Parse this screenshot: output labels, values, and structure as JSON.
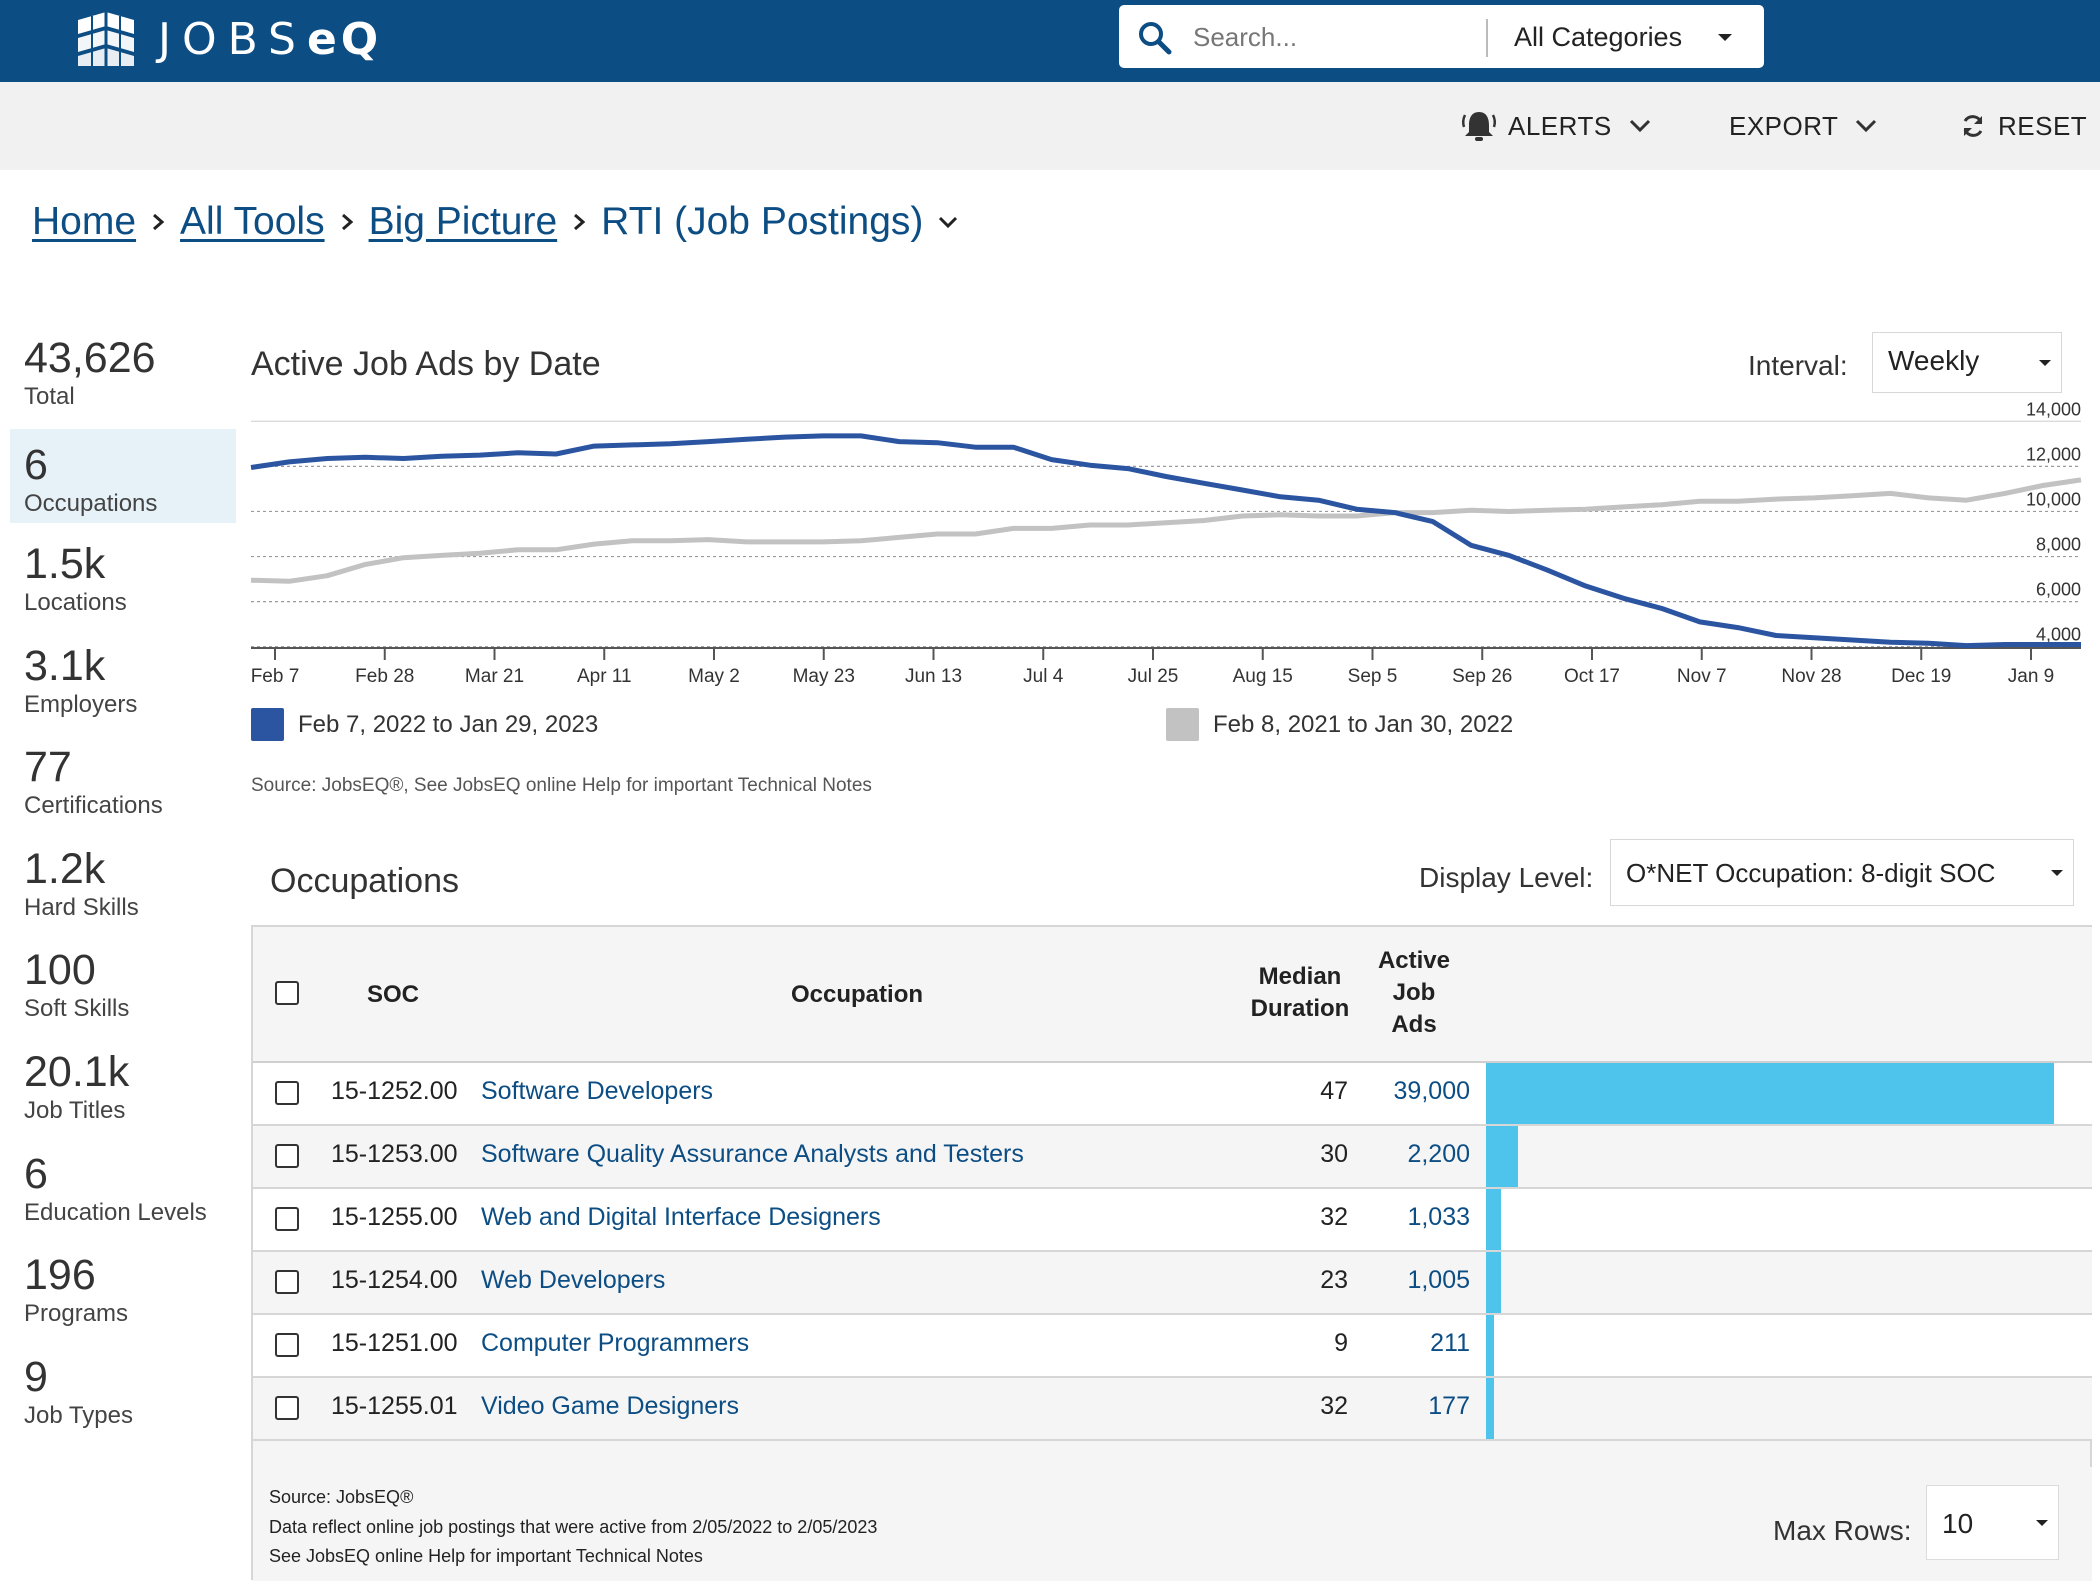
{
  "header": {
    "logo_text_light": "JOBS",
    "logo_text_bold": "eQ",
    "search": {
      "placeholder": "Search...",
      "category": "All Categories"
    }
  },
  "actions": {
    "alerts": "ALERTS",
    "export": "EXPORT",
    "reset": "RESET"
  },
  "breadcrumb": {
    "items": [
      "Home",
      "All Tools",
      "Big Picture"
    ],
    "current": "RTI (Job Postings)"
  },
  "stats": [
    {
      "value": "43,626",
      "label": "Total"
    },
    {
      "value": "6",
      "label": "Occupations"
    },
    {
      "value": "1.5k",
      "label": "Locations"
    },
    {
      "value": "3.1k",
      "label": "Employers"
    },
    {
      "value": "77",
      "label": "Certifications"
    },
    {
      "value": "1.2k",
      "label": "Hard Skills"
    },
    {
      "value": "100",
      "label": "Soft Skills"
    },
    {
      "value": "20.1k",
      "label": "Job Titles"
    },
    {
      "value": "6",
      "label": "Education Levels"
    },
    {
      "value": "196",
      "label": "Programs"
    },
    {
      "value": "9",
      "label": "Job Types"
    }
  ],
  "active_stat": "Occupations",
  "chart_panel": {
    "interval_label": "Interval:",
    "interval_value": "Weekly",
    "source": "Source: JobsEQ®, See JobsEQ online Help for important Technical Notes"
  },
  "chart_data": {
    "type": "line",
    "title": "Active Job Ads by Date",
    "x_ticks": [
      "Feb 7",
      "Feb 28",
      "Mar 21",
      "Apr 11",
      "May 2",
      "May 23",
      "Jun 13",
      "Jul 4",
      "Jul 25",
      "Aug 15",
      "Sep 5",
      "Sep 26",
      "Oct 17",
      "Nov 7",
      "Nov 28",
      "Dec 19",
      "Jan 9"
    ],
    "y_ticks": [
      4000,
      6000,
      8000,
      10000,
      12000,
      14000
    ],
    "y_tick_labels": [
      "4,000",
      "6,000",
      "8,000",
      "10,000",
      "12,000",
      "14,000"
    ],
    "ylim": [
      3500,
      14500
    ],
    "grid": "horizontal dashed",
    "legend_placement": "bottom",
    "series": [
      {
        "name": "Feb 7, 2022 to Jan 29, 2023",
        "color": "#2b55a1",
        "values": [
          11950,
          12200,
          12350,
          12400,
          12350,
          12450,
          12500,
          12600,
          12550,
          12900,
          12950,
          13000,
          13100,
          13200,
          13300,
          13350,
          13350,
          13100,
          13050,
          12850,
          12850,
          12300,
          12050,
          11900,
          11550,
          11250,
          10950,
          10650,
          10500,
          10100,
          9950,
          9550,
          8500,
          8050,
          7400,
          6700,
          6150,
          5700,
          5100,
          4850,
          4500,
          4400,
          4300,
          4200,
          4150,
          4050,
          4100,
          4100,
          4100
        ]
      },
      {
        "name": "Feb 8, 2021 to Jan 30, 2022",
        "color": "#c2c2c2",
        "values": [
          6950,
          6900,
          7150,
          7650,
          7950,
          8050,
          8150,
          8300,
          8300,
          8550,
          8700,
          8700,
          8750,
          8650,
          8650,
          8650,
          8700,
          8850,
          9000,
          9000,
          9250,
          9250,
          9400,
          9400,
          9500,
          9600,
          9800,
          9850,
          9800,
          9800,
          9950,
          9950,
          10050,
          10000,
          10050,
          10100,
          10200,
          10300,
          10450,
          10450,
          10550,
          10600,
          10700,
          10800,
          10600,
          10500,
          10800,
          11150,
          11400
        ]
      }
    ]
  },
  "occupations": {
    "title": "Occupations",
    "display_label": "Display Level:",
    "display_value": "O*NET Occupation: 8-digit SOC",
    "columns": {
      "soc": "SOC",
      "occupation": "Occupation",
      "duration": [
        "Median",
        "Duration"
      ],
      "ads": [
        "Active",
        "Job",
        "Ads"
      ]
    },
    "rows": [
      {
        "soc": "15-1252.00",
        "occupation": "Software Developers",
        "duration": "47",
        "ads": "39,000",
        "ads_value": 39000
      },
      {
        "soc": "15-1253.00",
        "occupation": "Software Quality Assurance Analysts and Testers",
        "duration": "30",
        "ads": "2,200",
        "ads_value": 2200
      },
      {
        "soc": "15-1255.00",
        "occupation": "Web and Digital Interface Designers",
        "duration": "32",
        "ads": "1,033",
        "ads_value": 1033
      },
      {
        "soc": "15-1254.00",
        "occupation": "Web Developers",
        "duration": "23",
        "ads": "1,005",
        "ads_value": 1005
      },
      {
        "soc": "15-1251.00",
        "occupation": "Computer Programmers",
        "duration": "9",
        "ads": "211",
        "ads_value": 211
      },
      {
        "soc": "15-1255.01",
        "occupation": "Video Game Designers",
        "duration": "32",
        "ads": "177",
        "ads_value": 177
      }
    ],
    "bar_color": "#4ec3ec",
    "bar_max": 39000,
    "footer": [
      "Source: JobsEQ®",
      "Data reflect online job postings that were active from 2/05/2022 to 2/05/2023",
      "See JobsEQ online Help for important Technical Notes"
    ],
    "max_rows_label": "Max Rows:",
    "max_rows_value": "10"
  }
}
